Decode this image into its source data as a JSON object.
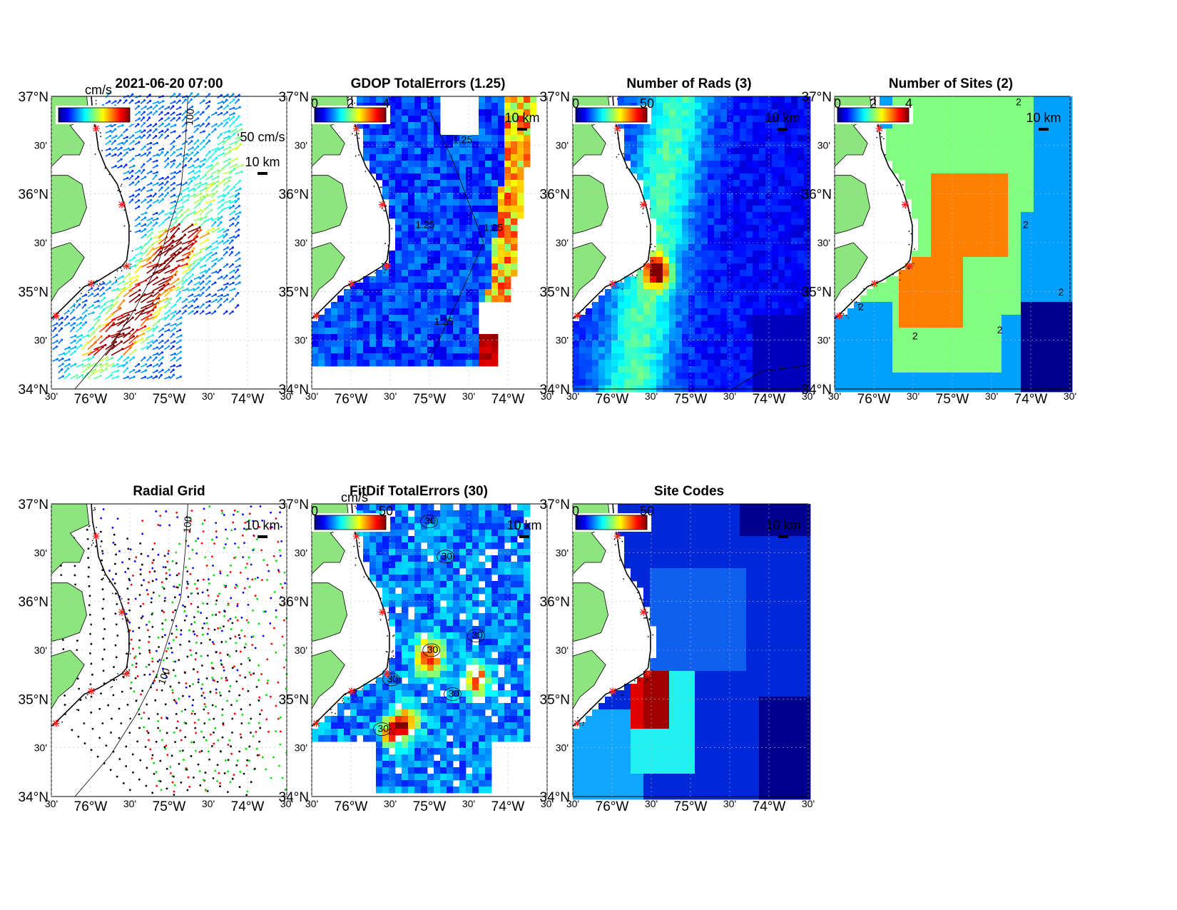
{
  "figure": {
    "coast_color": "#8ee57f",
    "site_marker_color": "#ff2020"
  },
  "axes": {
    "y_major": [
      "37°N",
      "36°N",
      "35°N",
      "34°N"
    ],
    "y_minor": [
      "30'",
      "30'",
      "30'"
    ],
    "x_labels": [
      "30'",
      "76°W",
      "30'",
      "75°W",
      "30'",
      "74°W",
      "30'"
    ]
  },
  "panels": [
    {
      "id": "totals",
      "title": "2021-06-20 07:00",
      "colorbar_units": "cm/s",
      "scale_vector_label": "50 cm/s",
      "scale_bar_label": "10 km",
      "isobath_label": "100"
    },
    {
      "id": "gdop",
      "title": "GDOP TotalErrors (1.25)",
      "colorbar_ticks": [
        "0",
        "2",
        "4"
      ],
      "scale_bar_label": "10 km",
      "contour_labels": [
        "1.25",
        "1.25",
        "1.25",
        "1.25"
      ]
    },
    {
      "id": "nrads",
      "title": "Number of Rads (3)",
      "colorbar_ticks": [
        "0",
        "50"
      ],
      "scale_bar_label": "10 km"
    },
    {
      "id": "nsites",
      "title": "Number of Sites (2)",
      "colorbar_ticks": [
        "0",
        "2",
        "4"
      ],
      "scale_bar_label": "10 km",
      "contour_labels": [
        "2",
        "2",
        "2",
        "2",
        "2",
        "2"
      ]
    },
    {
      "id": "radgrid",
      "title": "Radial Grid",
      "scale_bar_label": "10 km",
      "isobath_labels": [
        "100",
        "100"
      ],
      "site_colors": [
        "#0000ff",
        "#ff0000",
        "#00dd00",
        "#000000"
      ]
    },
    {
      "id": "fitdif",
      "title": "FitDif TotalErrors (30)",
      "colorbar_units": "cm/s",
      "colorbar_ticks": [
        "0",
        "50"
      ],
      "scale_bar_label": "10 km",
      "contour_labels": [
        "30",
        "30",
        "30",
        "30",
        "30",
        "30",
        "30"
      ]
    },
    {
      "id": "sitecodes",
      "title": "Site Codes",
      "colorbar_ticks": [
        "0",
        "50"
      ],
      "scale_bar_label": "10 km"
    }
  ]
}
